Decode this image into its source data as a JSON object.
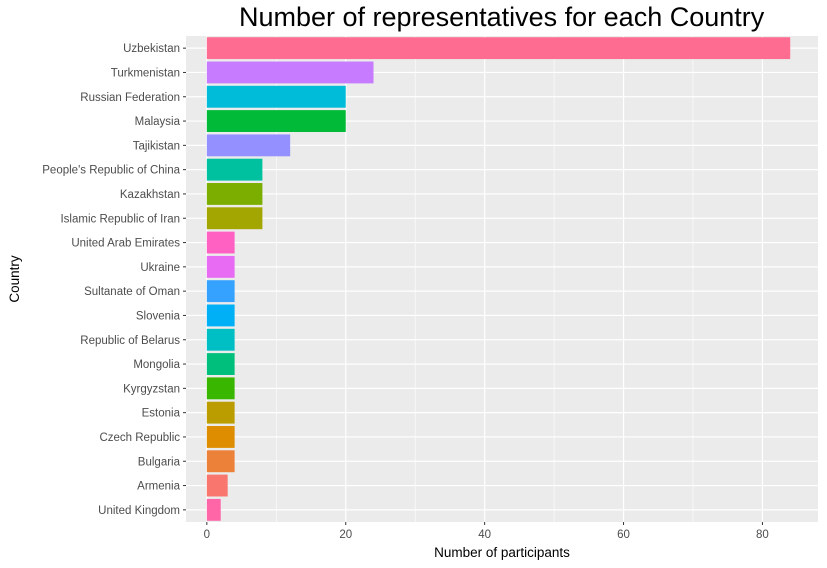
{
  "chart_data": {
    "type": "bar",
    "orientation": "horizontal",
    "title": "Number of representatives for each Country",
    "xlabel": "Number of participants",
    "ylabel": "Country",
    "xlim": [
      -3,
      88
    ],
    "xticks": [
      0,
      20,
      40,
      60,
      80
    ],
    "grid": true,
    "categories": [
      "Uzbekistan",
      "Turkmenistan",
      "Russian Federation",
      "Malaysia",
      "Tajikistan",
      "People's Republic of China",
      "Kazakhstan",
      "Islamic Republic of Iran",
      "United Arab Emirates",
      "Ukraine",
      "Sultanate of Oman",
      "Slovenia",
      "Republic of Belarus",
      "Mongolia",
      "Kyrgyzstan",
      "Estonia",
      "Czech Republic",
      "Bulgaria",
      "Armenia",
      "United Kingdom"
    ],
    "values": [
      84,
      24,
      20,
      20,
      12,
      8,
      8,
      8,
      4,
      4,
      4,
      4,
      4,
      4,
      4,
      4,
      4,
      4,
      3,
      2
    ],
    "colors": [
      "#FF6C91",
      "#C77CFF",
      "#00BCD8",
      "#00BA38",
      "#9590FF",
      "#00C19F",
      "#7CAE00",
      "#A3A500",
      "#FF61C3",
      "#E76BF3",
      "#35A2FF",
      "#00B0F6",
      "#00BFC4",
      "#00BF7D",
      "#39B600",
      "#BB9D00",
      "#DE8C00",
      "#EC8239",
      "#F8766D",
      "#FF66A8"
    ],
    "panel_background": "#EBEBEB",
    "grid_color": "#FFFFFF"
  }
}
